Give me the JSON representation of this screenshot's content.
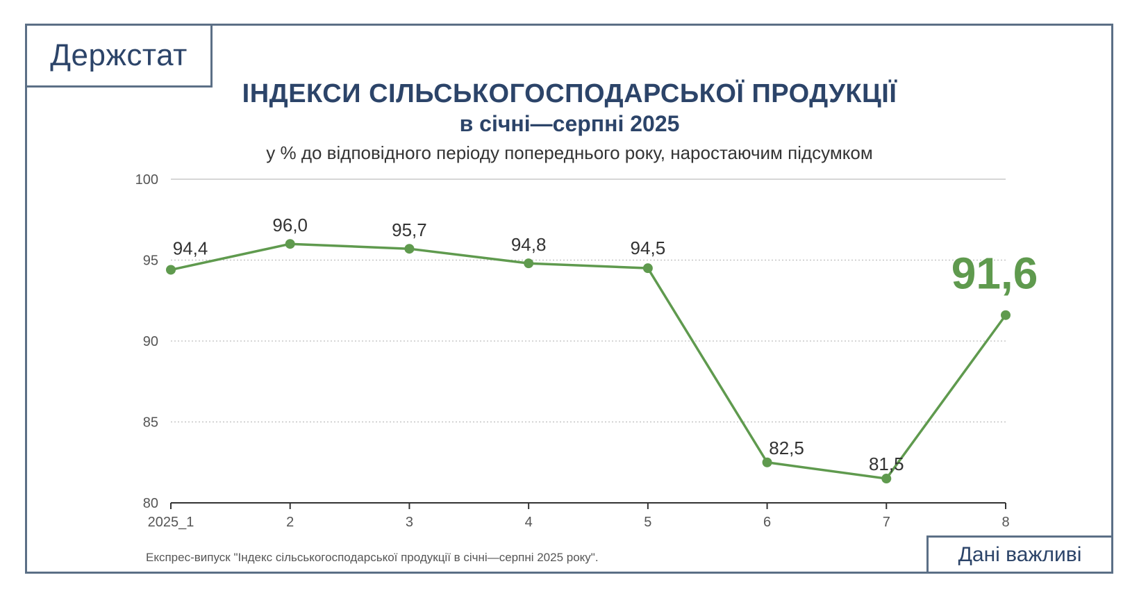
{
  "logo": {
    "text": "Держстат"
  },
  "header": {
    "title": "ІНДЕКСИ СІЛЬСЬКОГОСПОДАРСЬКОЇ ПРОДУКЦІЇ",
    "subtitle": "в січні—серпні 2025",
    "units": "у % до відповідного періоду попереднього року, наростаючим підсумком"
  },
  "footer": {
    "source": "Експрес-випуск \"Індекс сільськогосподарської продукції в січні—серпні 2025 року\".",
    "important": "Дані важливі"
  },
  "colors": {
    "line": "#5f9a4e",
    "text_dark": "#333333",
    "brand": "#2c4469",
    "highlight": "#5f9a4e"
  },
  "chart_data": {
    "type": "line",
    "categories": [
      "2025_1",
      "2",
      "3",
      "4",
      "5",
      "6",
      "7",
      "8"
    ],
    "values": [
      94.4,
      96.0,
      95.7,
      94.8,
      94.5,
      82.5,
      81.5,
      91.6
    ],
    "labels": [
      "94,4",
      "96,0",
      "95,7",
      "94,8",
      "94,5",
      "82,5",
      "81,5",
      "91,6"
    ],
    "yticks": [
      80,
      85,
      90,
      95,
      100
    ],
    "ylim": [
      80,
      100
    ],
    "grid": true,
    "highlight_last": true
  }
}
